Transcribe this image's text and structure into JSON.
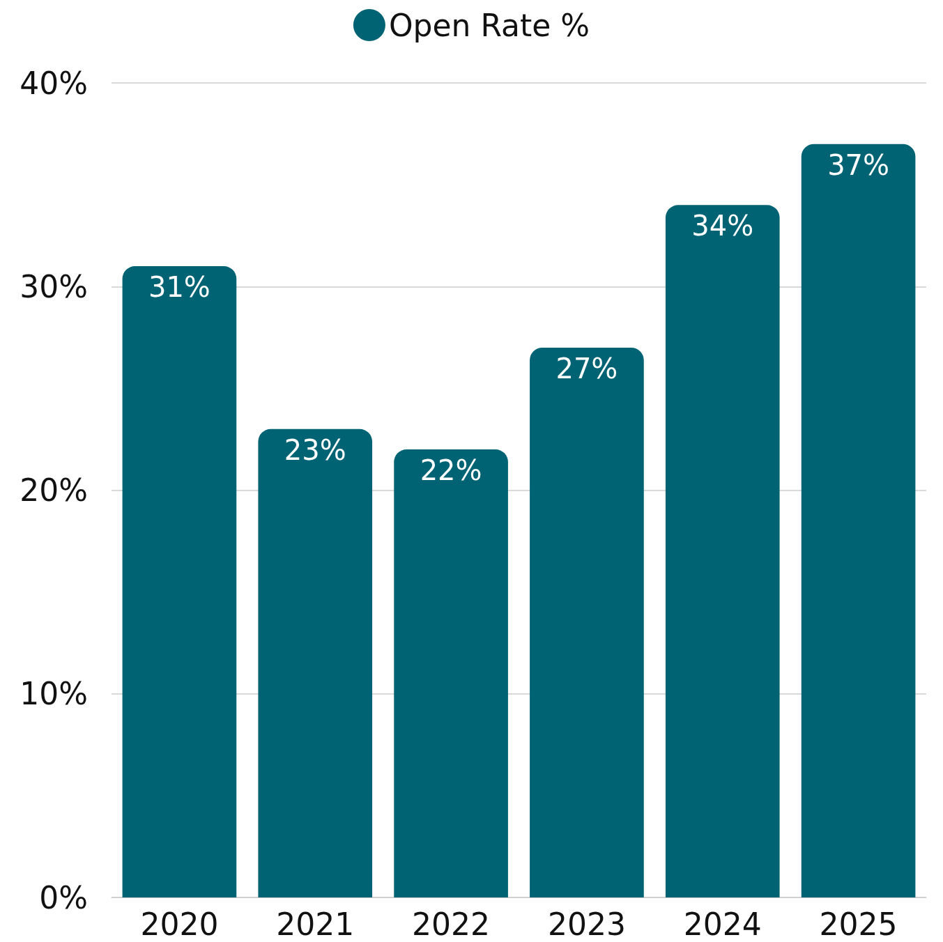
{
  "chart_data": {
    "type": "bar",
    "categories": [
      "2020",
      "2021",
      "2022",
      "2023",
      "2024",
      "2025"
    ],
    "series": [
      {
        "name": "Open Rate %",
        "color": "#006373",
        "values": [
          31,
          23,
          22,
          27,
          34,
          37
        ],
        "value_labels": [
          "31%",
          "23%",
          "22%",
          "27%",
          "34%",
          "37%"
        ]
      }
    ],
    "ylim": [
      0,
      40
    ],
    "yticks": [
      {
        "value": 0,
        "label": "0%"
      },
      {
        "value": 10,
        "label": "10%"
      },
      {
        "value": 20,
        "label": "20%"
      },
      {
        "value": 30,
        "label": "30%"
      },
      {
        "value": 40,
        "label": "40%"
      }
    ],
    "grid": "y",
    "legend": "top"
  }
}
